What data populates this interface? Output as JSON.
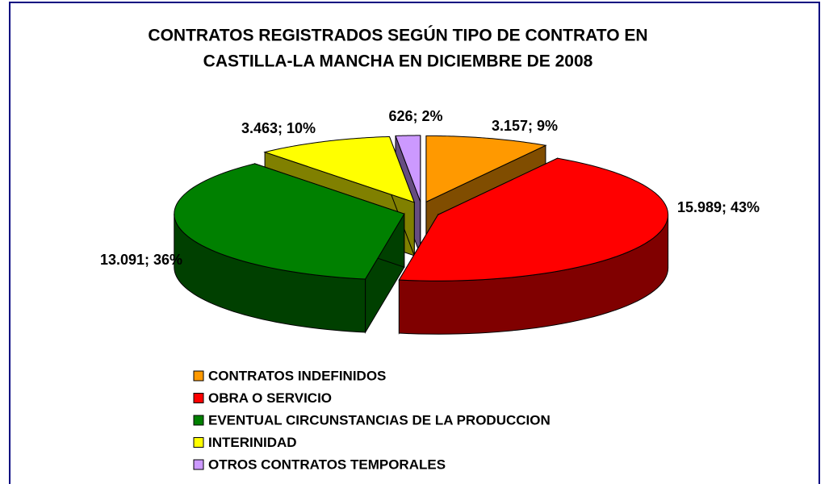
{
  "chart_data": {
    "type": "pie3d",
    "title": [
      "CONTRATOS REGISTRADOS SEGÚN TIPO DE CONTRATO EN",
      "CASTILLA-LA MANCHA EN DICIEMBRE DE 2008"
    ],
    "categories": [
      "CONTRATOS INDEFINIDOS",
      "OBRA O SERVICIO",
      "EVENTUAL CIRCUNSTANCIAS DE LA PRODUCCION",
      "INTERINIDAD",
      "OTROS CONTRATOS TEMPORALES"
    ],
    "values": [
      3157,
      15989,
      13091,
      3463,
      626
    ],
    "value_labels": [
      "3.157; 9%",
      "15.989; 43%",
      "13.091; 36%",
      "3.463; 10%",
      "626; 2%"
    ],
    "colors": [
      "#ff9900",
      "#ff0000",
      "#008000",
      "#ffff00",
      "#cc99ff"
    ],
    "legend": "bottom"
  }
}
